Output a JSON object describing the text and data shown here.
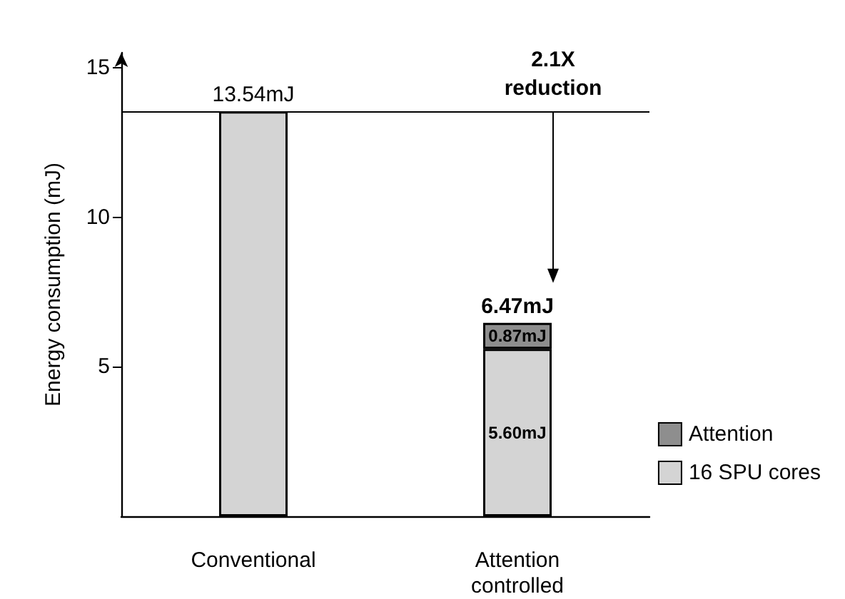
{
  "chart_data": {
    "type": "bar",
    "stacked": true,
    "ylabel": "Energy consumption (mJ)",
    "categories": [
      "Conventional",
      "Attention\ncontrolled"
    ],
    "series": [
      {
        "name": "16 SPU cores",
        "color": "#d4d4d4",
        "values": [
          13.54,
          5.6
        ],
        "value_labels": [
          null,
          "5.60mJ"
        ]
      },
      {
        "name": "Attention",
        "color": "#8e8e8e",
        "values": [
          null,
          0.87
        ],
        "value_labels": [
          null,
          "0.87mJ"
        ]
      }
    ],
    "totals": [
      "13.54mJ",
      "6.47mJ"
    ],
    "ylim": [
      0,
      15.5
    ],
    "yticks": [
      5,
      10,
      15
    ],
    "grid": false,
    "legend": "bottom right",
    "ref_lines": [
      {
        "axis": "y",
        "value": 13.54,
        "label": null
      }
    ],
    "annotations": [
      {
        "text": "2.1X\nreduction",
        "x": "Attention\ncontrolled",
        "y": 13.54
      }
    ]
  }
}
